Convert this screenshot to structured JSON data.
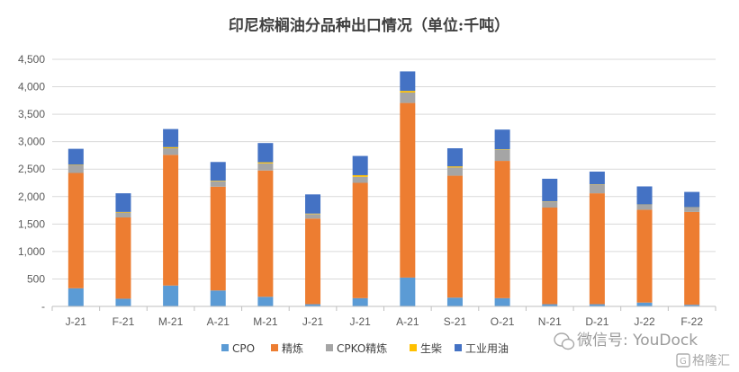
{
  "chart_data": {
    "type": "bar",
    "stacked": true,
    "title": "印尼棕榈油分品种出口情况（单位:千吨）",
    "categories": [
      "J-21",
      "F-21",
      "M-21",
      "A-21",
      "M-21",
      "J-21",
      "J-21",
      "A-21",
      "S-21",
      "O-21",
      "N-21",
      "D-21",
      "J-22",
      "F-22"
    ],
    "ylim": [
      0,
      4500
    ],
    "yticks": [
      0,
      500,
      1000,
      1500,
      2000,
      2500,
      3000,
      3500,
      4000,
      4500
    ],
    "ytick_labels": [
      "-",
      "500",
      "1,000",
      "1,500",
      "2,000",
      "2,500",
      "3,000",
      "3,500",
      "4,000",
      "4,500"
    ],
    "grid": true,
    "legend_position": "bottom",
    "series": [
      {
        "name": "CPO",
        "color": "#5b9bd5",
        "values": [
          330,
          140,
          380,
          290,
          175,
          40,
          150,
          525,
          160,
          150,
          40,
          40,
          70,
          30
        ]
      },
      {
        "name": "精炼",
        "color": "#ed7d31",
        "values": [
          2100,
          1480,
          2380,
          1890,
          2300,
          1560,
          2100,
          3180,
          2220,
          2500,
          1760,
          2020,
          1690,
          1690
        ]
      },
      {
        "name": "CPKO精炼",
        "color": "#a5a5a5",
        "values": [
          140,
          90,
          120,
          100,
          130,
          80,
          110,
          190,
          150,
          200,
          110,
          160,
          90,
          80
        ]
      },
      {
        "name": "生柴",
        "color": "#ffc000",
        "values": [
          10,
          10,
          20,
          10,
          20,
          10,
          30,
          30,
          20,
          10,
          5,
          5,
          5,
          5
        ]
      },
      {
        "name": "工业用油",
        "color": "#4472c4",
        "values": [
          290,
          340,
          330,
          340,
          350,
          350,
          350,
          355,
          330,
          360,
          410,
          230,
          330,
          280
        ]
      }
    ]
  },
  "watermark": {
    "text": "微信号: YouDock",
    "brand": "格隆汇"
  }
}
